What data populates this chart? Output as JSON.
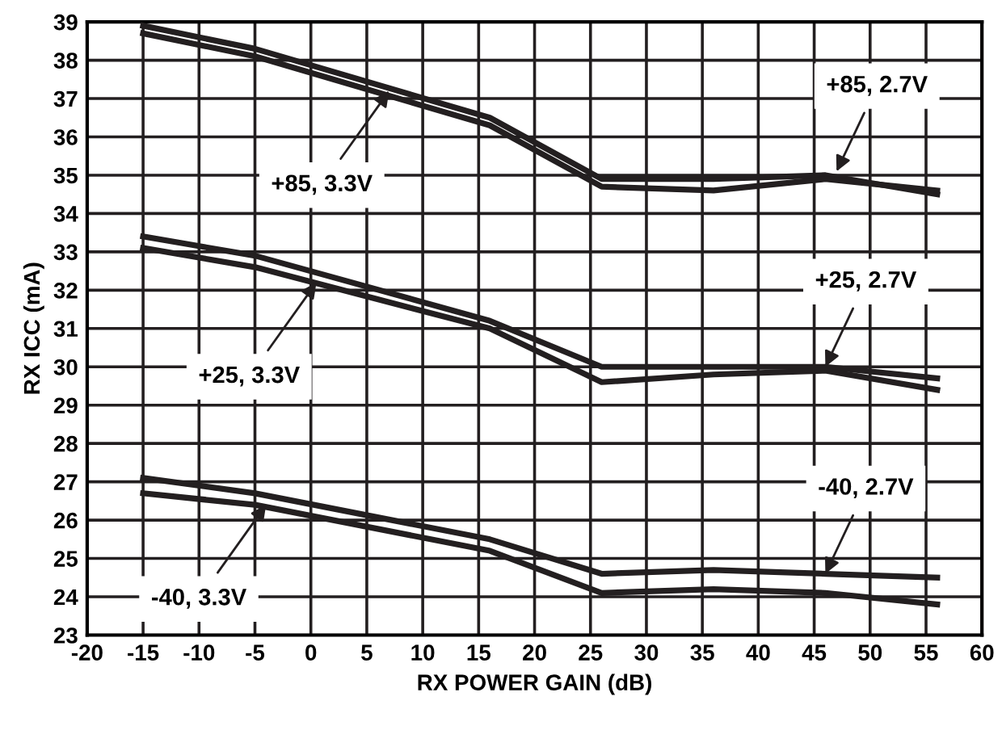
{
  "chart_data": {
    "type": "line",
    "xlabel": "RX POWER GAIN (dB)",
    "ylabel": "RX ICC (mA)",
    "x": [
      -15,
      -5,
      16,
      26,
      36,
      46,
      56
    ],
    "series": [
      {
        "color": "#231f20",
        "values": [
          38.9,
          38.3,
          36.5,
          34.9,
          34.9,
          35.0,
          34.5
        ]
      },
      {
        "color": "#231f20",
        "values": [
          38.7,
          38.1,
          36.3,
          34.7,
          34.6,
          34.9,
          34.6
        ]
      },
      {
        "color": "#231f20",
        "values": [
          33.4,
          32.9,
          31.2,
          30.0,
          30.0,
          30.0,
          29.7
        ]
      },
      {
        "color": "#231f20",
        "values": [
          33.1,
          32.6,
          31.0,
          29.6,
          29.8,
          29.9,
          29.4
        ]
      },
      {
        "color": "#231f20",
        "values": [
          27.1,
          26.7,
          25.5,
          24.6,
          24.7,
          24.6,
          24.5
        ]
      },
      {
        "color": "#231f20",
        "values": [
          26.7,
          26.4,
          25.2,
          24.1,
          24.2,
          24.1,
          23.8
        ]
      }
    ],
    "annotations": [
      {
        "text": "+85, 3.3V",
        "x": 7,
        "y": 37.2
      },
      {
        "text": "+85, 2.7V",
        "x": 47,
        "y": 35.1
      },
      {
        "text": "+25, 3.3V",
        "x": 0.5,
        "y": 32.2
      },
      {
        "text": "+25, 2.7V",
        "x": 46,
        "y": 30.0
      },
      {
        "text": "-40, 3.3V",
        "x": -4,
        "y": 26.4
      },
      {
        "text": "-40, 2.7V",
        "x": 46,
        "y": 24.6
      }
    ],
    "xlim": [
      -20,
      60
    ],
    "xticks": [
      -20,
      -15,
      -10,
      -5,
      0,
      5,
      10,
      15,
      20,
      25,
      30,
      35,
      40,
      45,
      50,
      55,
      60
    ],
    "ylim": [
      23,
      39
    ],
    "yticks": [
      23,
      24,
      25,
      26,
      27,
      28,
      29,
      30,
      31,
      32,
      33,
      34,
      35,
      36,
      37,
      38,
      39
    ],
    "grid": true,
    "legend": false,
    "marker": "none",
    "line_style": "solid"
  }
}
